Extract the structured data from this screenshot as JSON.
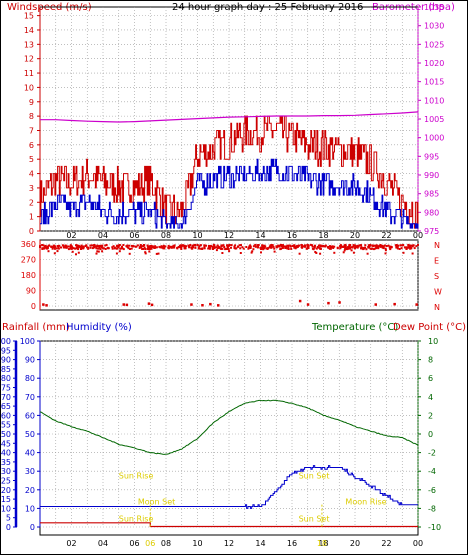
{
  "colors": {
    "windspeed": "#cc0000",
    "wind_avg": "#0000cc",
    "barometer": "#cc00cc",
    "direction": "#dd0000",
    "rain": "#cc0000",
    "humidity": "#0000cc",
    "temperature": "#006600",
    "dewpoint": "#cc0000",
    "sun": "#ddcc00"
  },
  "chart_data": [
    {
      "type": "line",
      "title": "24 hour graph day : 25 February 2016",
      "left_axis_label": "Windspeed (m/s)",
      "right_axis_label": "Barometer (hpa)",
      "x_tick_labels": [
        "02",
        "04",
        "06",
        "08",
        "10",
        "12",
        "14",
        "16",
        "18",
        "20",
        "22",
        "00"
      ],
      "left_ticks": [
        "0",
        "1",
        "2",
        "3",
        "4",
        "5",
        "6",
        "7",
        "8",
        "9",
        "10",
        "11",
        "12",
        "13",
        "14",
        "15"
      ],
      "right_ticks": [
        "975",
        "980",
        "985",
        "990",
        "995",
        "1000",
        "1005",
        "1010",
        "1015",
        "1020",
        "1025",
        "1030",
        "1035"
      ],
      "ylim_left": [
        0,
        15.6
      ],
      "ylim_right": [
        975,
        1035
      ],
      "x_hours": [
        0,
        1,
        2,
        3,
        4,
        5,
        6,
        7,
        8,
        9,
        10,
        11,
        12,
        13,
        14,
        15,
        16,
        17,
        18,
        19,
        20,
        21,
        22,
        23,
        24
      ],
      "series": [
        {
          "key": "gust",
          "values": [
            2.3,
            3.6,
            3.3,
            3.9,
            3.4,
            3.1,
            3.0,
            3.5,
            1.5,
            1.2,
            5.3,
            5.8,
            6.2,
            6.8,
            6.9,
            7.0,
            6.6,
            6.0,
            5.8,
            5.6,
            5.4,
            4.8,
            3.5,
            2.0,
            1.2
          ]
        },
        {
          "key": "avg",
          "values": [
            0.8,
            1.9,
            1.6,
            2.1,
            1.4,
            1.2,
            1.3,
            1.3,
            0.4,
            0.4,
            3.3,
            3.6,
            3.8,
            3.9,
            4.1,
            4.3,
            4.0,
            3.6,
            3.4,
            3.2,
            3.1,
            2.4,
            1.5,
            0.8,
            0.4
          ]
        },
        {
          "key": "baro",
          "values": [
            1004.8,
            1004.8,
            1004.6,
            1004.4,
            1004.3,
            1004.2,
            1004.3,
            1004.5,
            1004.7,
            1004.9,
            1005.1,
            1005.3,
            1005.5,
            1005.6,
            1005.7,
            1005.8,
            1005.8,
            1005.8,
            1005.9,
            1005.9,
            1006.0,
            1006.2,
            1006.4,
            1006.6,
            1006.9
          ]
        }
      ]
    },
    {
      "type": "scatter",
      "title": "",
      "left_ticks": [
        "0",
        "90",
        "180",
        "270",
        "360"
      ],
      "right_ticks": [
        "N",
        "W",
        "S",
        "E",
        "N"
      ],
      "ylim": [
        0,
        360
      ],
      "main_band_values": [
        330,
        355
      ],
      "outlier_points": [
        [
          0.2,
          10
        ],
        [
          0.4,
          5
        ],
        [
          5.3,
          10
        ],
        [
          5.5,
          8
        ],
        [
          6.9,
          15
        ],
        [
          7.1,
          8
        ],
        [
          9.6,
          10
        ],
        [
          10.3,
          6
        ],
        [
          10.8,
          12
        ],
        [
          11.3,
          5
        ],
        [
          16.5,
          30
        ],
        [
          17.0,
          10
        ],
        [
          18.3,
          18
        ],
        [
          19.0,
          22
        ],
        [
          21.3,
          10
        ],
        [
          22.5,
          12
        ],
        [
          23.9,
          10
        ]
      ]
    },
    {
      "type": "line",
      "title": "",
      "labels": {
        "rainfall": "Rainfall (mm)",
        "humidity": "Humidity (%)",
        "temperature": "Temperature (°C)",
        "dewpoint": "Dew Point (°C)"
      },
      "x_tick_labels": [
        "02",
        "04",
        "06",
        "08",
        "10",
        "12",
        "14",
        "16",
        "18",
        "20",
        "22",
        "00"
      ],
      "rain_ticks": [
        "0",
        "5",
        "10",
        "15",
        "20",
        "25",
        "30",
        "35",
        "40",
        "45",
        "50",
        "55",
        "60",
        "65",
        "70",
        "75",
        "80",
        "85",
        "90",
        "95",
        "100"
      ],
      "humidity_ticks": [
        "0",
        "10",
        "20",
        "30",
        "40",
        "50",
        "60",
        "70",
        "80",
        "90",
        "100"
      ],
      "temp_ticks": [
        "-10",
        "-8",
        "-6",
        "-4",
        "-2",
        "0",
        "2",
        "4",
        "6",
        "8",
        "10"
      ],
      "ylim_humidity": [
        0,
        100
      ],
      "ylim_temp": [
        -10,
        10
      ],
      "x_hours": [
        0,
        1,
        2,
        3,
        4,
        5,
        6,
        7,
        8,
        9,
        10,
        11,
        12,
        13,
        14,
        15,
        16,
        17,
        18,
        19,
        20,
        21,
        22,
        23,
        24
      ],
      "series": [
        {
          "key": "temperature",
          "values": [
            2.4,
            1.4,
            0.8,
            0.3,
            -0.4,
            -1.1,
            -1.5,
            -2.0,
            -2.2,
            -1.6,
            -0.5,
            1.2,
            2.4,
            3.3,
            3.6,
            3.6,
            3.3,
            2.8,
            2.0,
            1.5,
            0.8,
            0.3,
            -0.2,
            -0.4,
            -1.2
          ]
        },
        {
          "key": "humidity",
          "values": [
            11,
            11,
            11,
            11,
            11,
            11,
            11,
            11,
            11,
            11,
            11,
            11,
            11,
            11,
            11,
            20,
            29,
            32,
            32,
            32,
            27,
            22,
            17,
            12,
            12
          ]
        },
        {
          "key": "rain",
          "values": [
            2,
            2,
            2,
            2,
            2,
            2,
            2,
            0,
            0,
            0,
            0,
            0,
            0,
            0,
            0,
            0,
            0,
            0,
            0,
            0,
            0,
            0,
            0,
            0,
            0
          ]
        }
      ],
      "annotations": [
        {
          "text": "Sun Rise",
          "hour": 6.1,
          "level": 26
        },
        {
          "text": "Sun Set",
          "hour": 17.4,
          "level": 26
        },
        {
          "text": "Moon Set",
          "hour": 7.4,
          "level": 12
        },
        {
          "text": "Moon Rise",
          "hour": 20.7,
          "level": 12
        },
        {
          "text": "Sun Rise",
          "hour": 6.1,
          "level": 3
        },
        {
          "text": "Sun Set",
          "hour": 17.4,
          "level": 3
        }
      ],
      "markers": [
        {
          "text": "06",
          "hour": 7.0
        },
        {
          "text": "18",
          "hour": 17.9
        }
      ]
    }
  ]
}
